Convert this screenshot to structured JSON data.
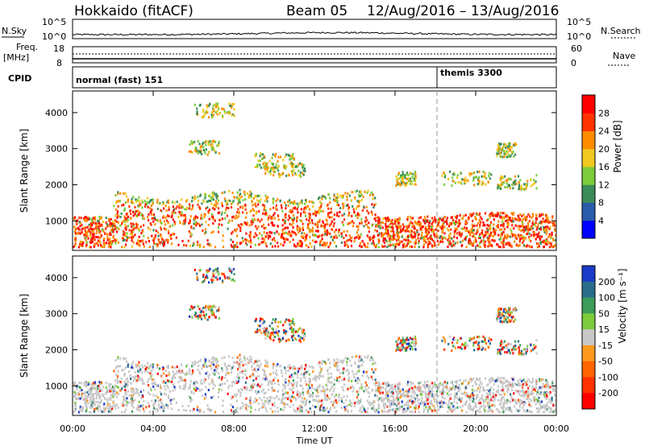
{
  "header": {
    "radar": "Hokkaido (fitACF)",
    "beam": "Beam 05",
    "date_range": "12/Aug/2016 – 13/Aug/2016"
  },
  "status_panels": {
    "nsky_label": "N.Sky",
    "nsky_ticks": [
      "10^5",
      "10^0"
    ],
    "nsky_right_ticks": [
      "10^5",
      "10^0"
    ],
    "nsearch_label": "N.Search",
    "freq_label_1": "Freq.",
    "freq_label_2": "[MHz]",
    "freq_ticks": [
      "18",
      "8"
    ],
    "nave_label": "Nave",
    "nave_ticks": [
      "60",
      "0"
    ],
    "cpid_label": "CPID",
    "cpid_modes": [
      {
        "name": "normal (fast) 151",
        "start_hour": 0
      },
      {
        "name": "themis 3300",
        "start_hour": 18
      }
    ]
  },
  "chart_data": [
    {
      "type": "heatmap",
      "title": "",
      "xlabel": "Time UT",
      "ylabel": "Slant Range [km]",
      "x_ticks": [
        "00:00",
        "04:00",
        "08:00",
        "12:00",
        "16:00",
        "20:00",
        "00:00"
      ],
      "y_ticks": [
        "1000",
        "2000",
        "3000",
        "4000"
      ],
      "xlim_hours": [
        0,
        24
      ],
      "ylim_km": [
        180,
        4600
      ],
      "colorbar": {
        "label": "Power [dB]",
        "ticks": [
          "4",
          "8",
          "12",
          "16",
          "20",
          "24",
          "28"
        ],
        "colors": [
          "#0000ff",
          "#2a5caa",
          "#3c8c5a",
          "#7ccc3c",
          "#f0c820",
          "#ff8c00",
          "#ff3300",
          "#ff0000"
        ]
      },
      "description_regions": [
        {
          "t_start": 0,
          "t_end": 24,
          "range_min": 300,
          "range_max": 1200,
          "level": "high"
        },
        {
          "t_start": 2,
          "t_end": 15,
          "range_min": 1200,
          "range_max": 1800,
          "level": "high"
        }
      ]
    },
    {
      "type": "heatmap",
      "title": "",
      "xlabel": "Time UT",
      "ylabel": "Slant Range [km]",
      "x_ticks": [
        "00:00",
        "04:00",
        "08:00",
        "12:00",
        "16:00",
        "20:00",
        "00:00"
      ],
      "y_ticks": [
        "1000",
        "2000",
        "3000",
        "4000"
      ],
      "xlim_hours": [
        0,
        24
      ],
      "ylim_km": [
        180,
        4600
      ],
      "colorbar": {
        "label": "Velocity [m s⁻¹]",
        "ticks": [
          "200",
          "100",
          "50",
          "15",
          "-15",
          "-50",
          "-100",
          "-200"
        ],
        "colors": [
          "#1a3cc8",
          "#2a6e8c",
          "#3c9c5a",
          "#7ccc3c",
          "#c8c8c8",
          "#ff9a1e",
          "#ff6400",
          "#ff3200",
          "#ff0000"
        ]
      }
    }
  ],
  "colors": {
    "status_line": "#000000",
    "ground_gray": "#bebebe"
  }
}
